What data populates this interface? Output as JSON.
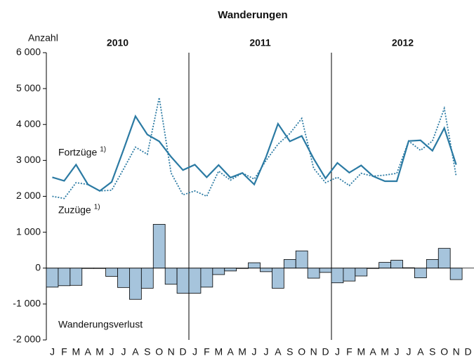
{
  "chart_data": {
    "type": "line_bar",
    "title": "Wanderungen",
    "y_label": "Anzahl",
    "years": [
      "2010",
      "2011",
      "2012"
    ],
    "note": "1)",
    "categories": [
      "J",
      "F",
      "M",
      "A",
      "M",
      "J",
      "J",
      "A",
      "S",
      "O",
      "N",
      "D",
      "J",
      "F",
      "M",
      "A",
      "M",
      "J",
      "J",
      "A",
      "S",
      "O",
      "N",
      "D",
      "J",
      "F",
      "M",
      "A",
      "M",
      "J",
      "J",
      "A",
      "S",
      "O",
      "N",
      "D"
    ],
    "series": [
      {
        "name": "Fortzüge",
        "kind": "line",
        "dash": "solid",
        "color": "#2b7aa3",
        "values": [
          2530,
          2430,
          2880,
          2330,
          2150,
          2400,
          3300,
          4230,
          3720,
          3530,
          3100,
          2730,
          2880,
          2530,
          2870,
          2520,
          2650,
          2330,
          3100,
          4020,
          3530,
          3680,
          3050,
          2500,
          2930,
          2660,
          2860,
          2560,
          2420,
          2420,
          3540,
          3560,
          3270,
          3900,
          2880,
          null
        ]
      },
      {
        "name": "Zuzüge",
        "kind": "line",
        "dash": "dotted",
        "color": "#2b7aa3",
        "values": [
          2000,
          1940,
          2380,
          2330,
          2150,
          2170,
          2760,
          3370,
          3170,
          4750,
          2650,
          2040,
          2150,
          2000,
          2700,
          2450,
          2650,
          2480,
          3000,
          3450,
          3750,
          4170,
          2780,
          2380,
          2530,
          2300,
          2640,
          2560,
          2590,
          2640,
          3540,
          3280,
          3540,
          4450,
          2560,
          null
        ]
      },
      {
        "name": "Wanderungsverlust",
        "kind": "bar",
        "color": "#a6c4dc",
        "values": [
          -530,
          -490,
          -480,
          -10,
          -10,
          -230,
          -540,
          -870,
          -560,
          1220,
          -450,
          -700,
          -700,
          -530,
          -180,
          -80,
          -10,
          150,
          -100,
          -560,
          240,
          480,
          -280,
          -120,
          -410,
          -360,
          -220,
          -10,
          160,
          220,
          10,
          -270,
          240,
          550,
          -320,
          null
        ]
      }
    ],
    "ylim": [
      -2000,
      6000
    ],
    "yticks": [
      {
        "value": -2000,
        "label": "-2 000"
      },
      {
        "value": -1000,
        "label": "-1 000"
      },
      0,
      {
        "value": 1000,
        "label": "1 000"
      },
      {
        "value": 2000,
        "label": "2 000"
      },
      {
        "value": 3000,
        "label": "3 000"
      },
      {
        "value": 4000,
        "label": "4 000"
      },
      {
        "value": 5000,
        "label": "5 000"
      },
      {
        "value": 6000,
        "label": "6 000"
      }
    ]
  }
}
